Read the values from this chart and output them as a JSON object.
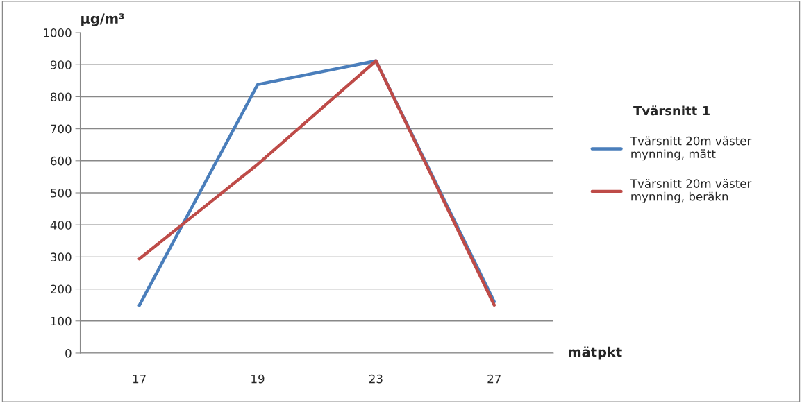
{
  "chart_data": {
    "type": "line",
    "ylabel": "µg/m³",
    "xlabel": "mätpkt",
    "legend_title": "Tvärsnitt 1",
    "categories": [
      "17",
      "19",
      "23",
      "27"
    ],
    "series": [
      {
        "name": "Tvärsnitt 20m väster mynning, mätt",
        "color": "#4a7ebb",
        "values": [
          149,
          838,
          912,
          160
        ]
      },
      {
        "name": "Tvärsnitt 20m väster mynning, beräkn",
        "color": "#be4b48",
        "values": [
          294,
          589,
          912,
          150
        ]
      }
    ],
    "ylim": [
      0,
      1000
    ],
    "yticks": [
      0,
      100,
      200,
      300,
      400,
      500,
      600,
      700,
      800,
      900,
      1000
    ],
    "grid": "y",
    "legend": "right",
    "marker": "none",
    "line_style": "solid"
  }
}
